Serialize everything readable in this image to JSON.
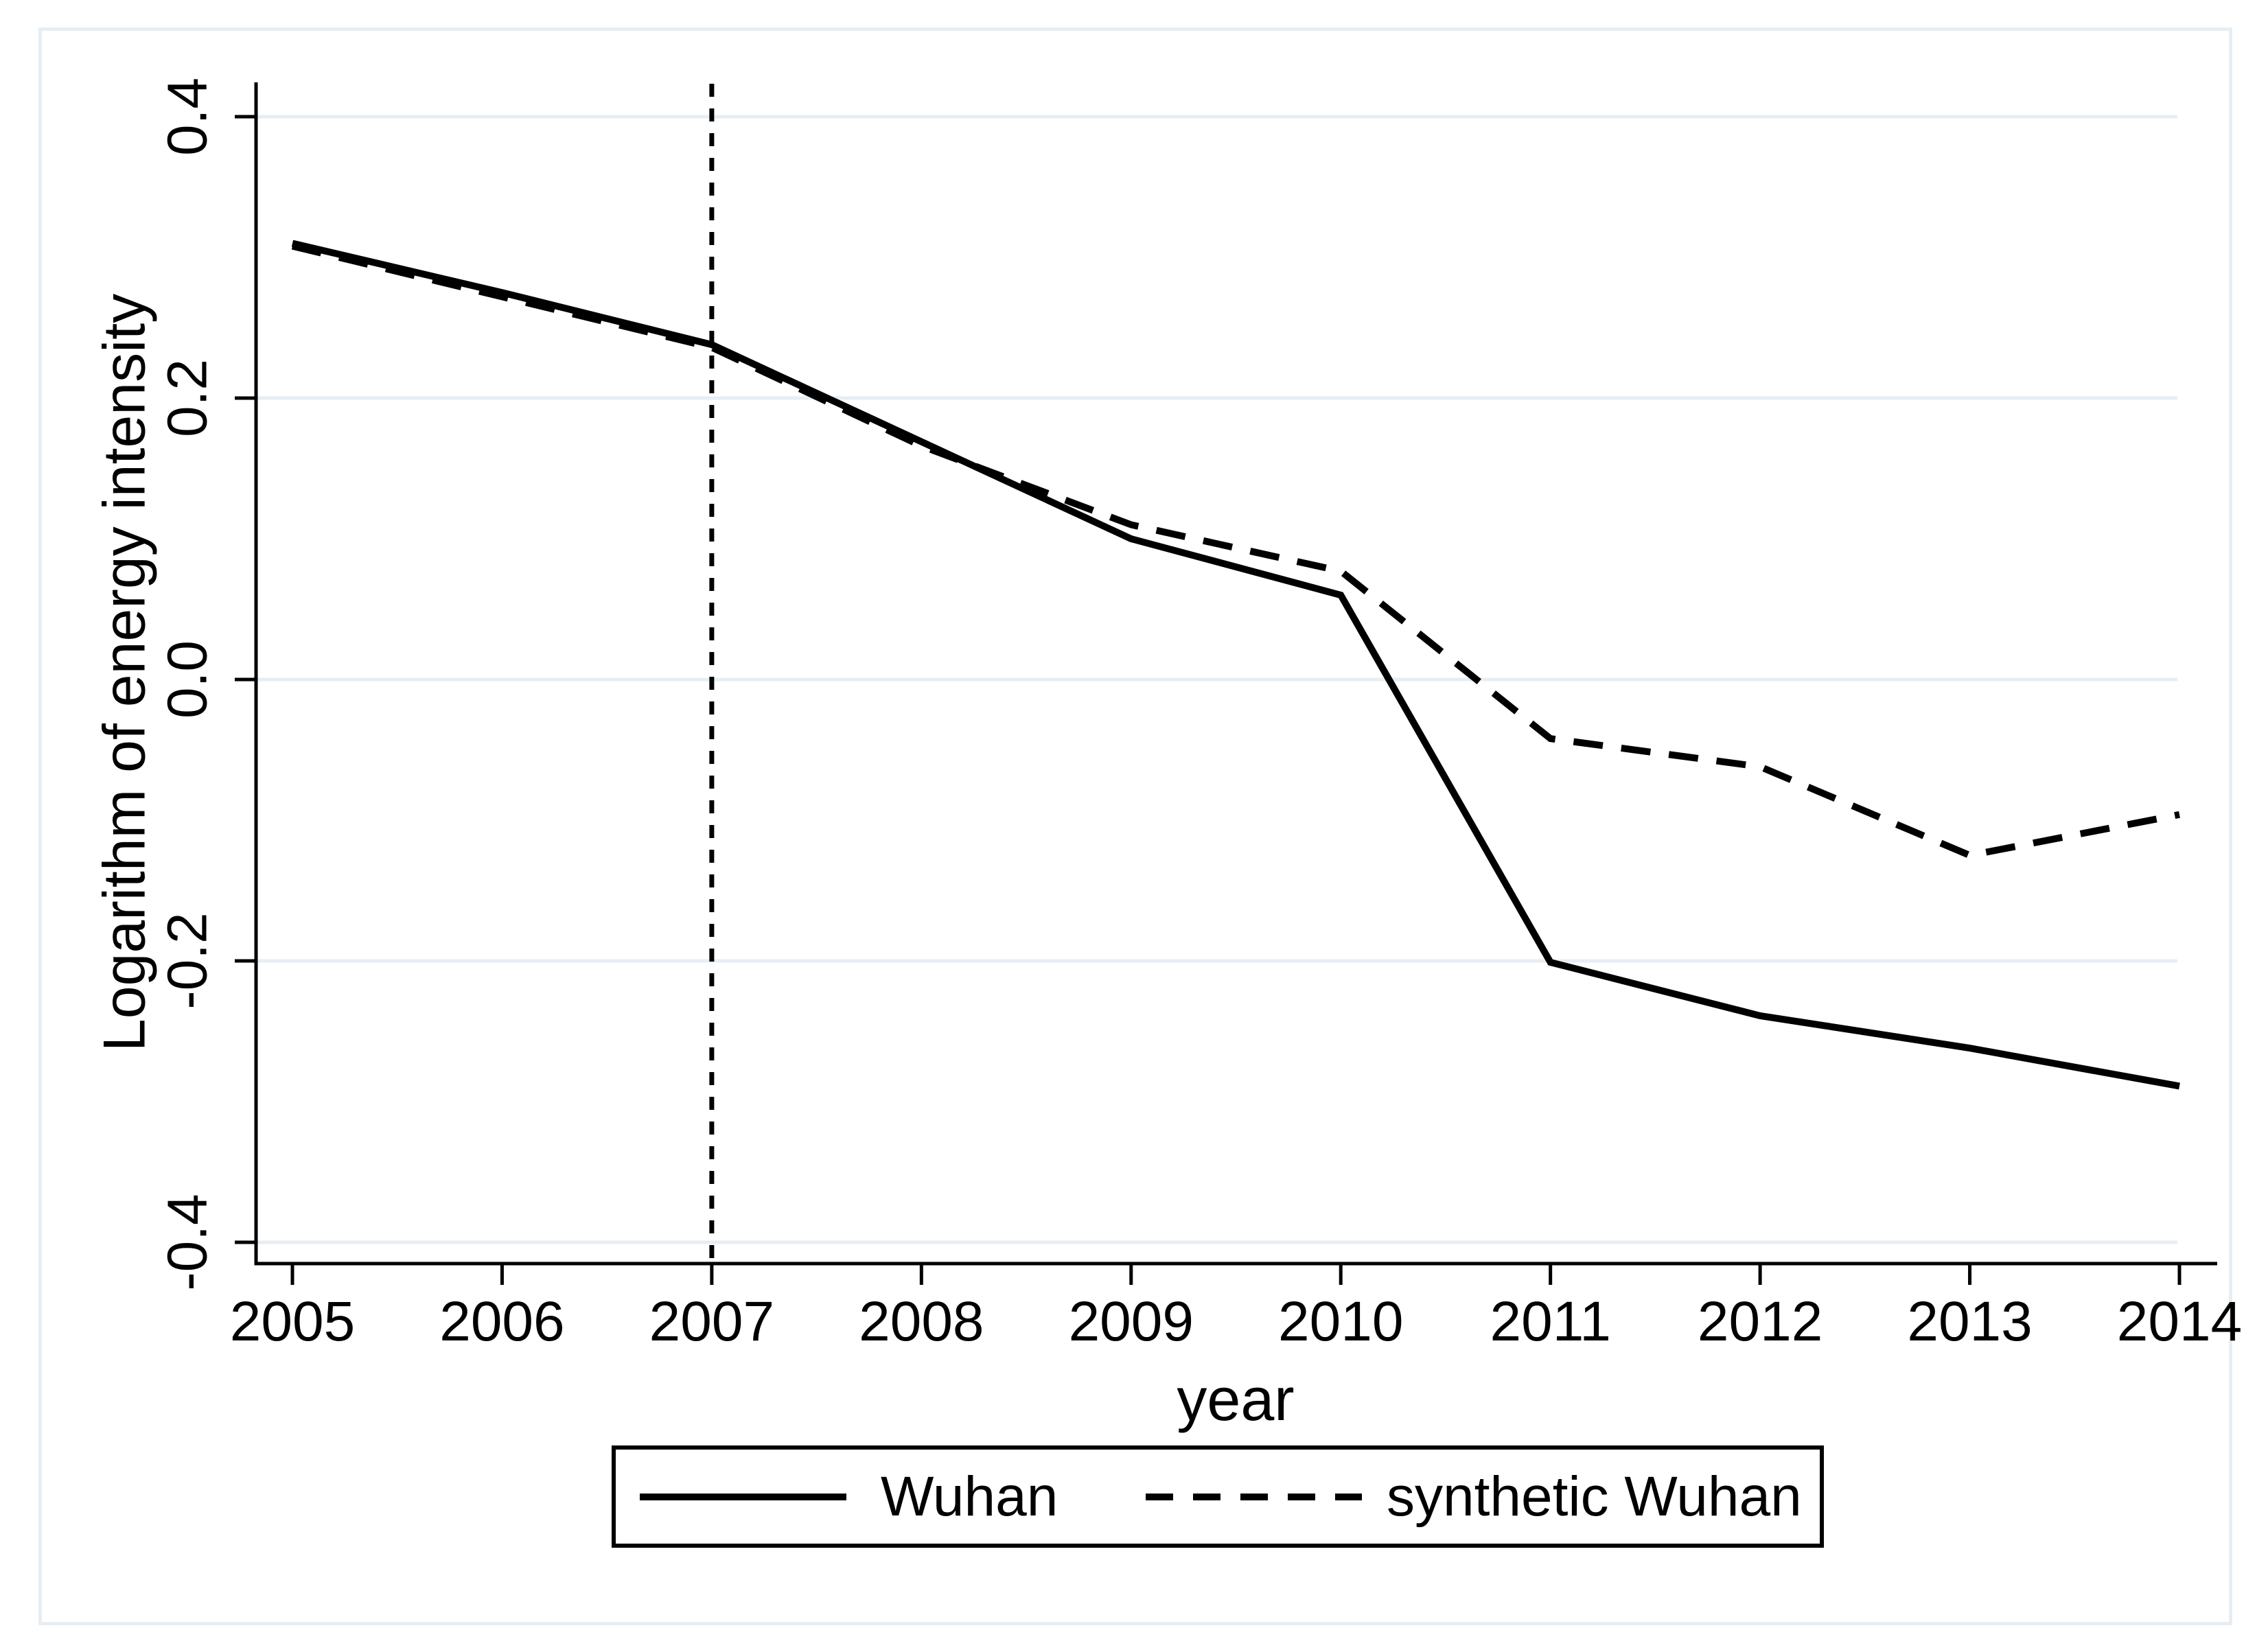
{
  "figure": {
    "background": "#ffffff",
    "frame_color": "#e7eef3",
    "grid_color": "#e7eef3",
    "ink_color": "#000000"
  },
  "chart_data": {
    "type": "line",
    "x": [
      2005,
      2006,
      2007,
      2008,
      2009,
      2010,
      2011,
      2012,
      2013,
      2014
    ],
    "series": [
      {
        "name": "Wuhan",
        "line_style": "solid",
        "values": [
          0.31,
          0.275,
          0.238,
          0.169,
          0.1,
          0.06,
          -0.201,
          -0.239,
          -0.262,
          -0.289
        ]
      },
      {
        "name": "synthetic Wuhan",
        "line_style": "dashed",
        "values": [
          0.308,
          0.272,
          0.236,
          0.166,
          0.11,
          0.077,
          -0.042,
          -0.062,
          -0.125,
          -0.096
        ]
      }
    ],
    "xlabel": "year",
    "ylabel": "Logarithm of energy intensity",
    "xticks": [
      "2005",
      "2006",
      "2007",
      "2008",
      "2009",
      "2010",
      "2011",
      "2012",
      "2013",
      "2014"
    ],
    "yticks": [
      {
        "value": 0.4,
        "label": "0.4"
      },
      {
        "value": 0.2,
        "label": "0.2"
      },
      {
        "value": 0.0,
        "label": "0.0"
      },
      {
        "value": -0.2,
        "label": "-0.2"
      },
      {
        "value": -0.4,
        "label": "-0.4"
      }
    ],
    "ylim": [
      -0.425,
      0.425
    ],
    "xlim": [
      2004.83,
      2014.2
    ],
    "vline_x": 2007,
    "grid": "horizontal",
    "legend": {
      "position": "bottom-center",
      "entries": [
        "Wuhan",
        "synthetic Wuhan"
      ]
    }
  }
}
